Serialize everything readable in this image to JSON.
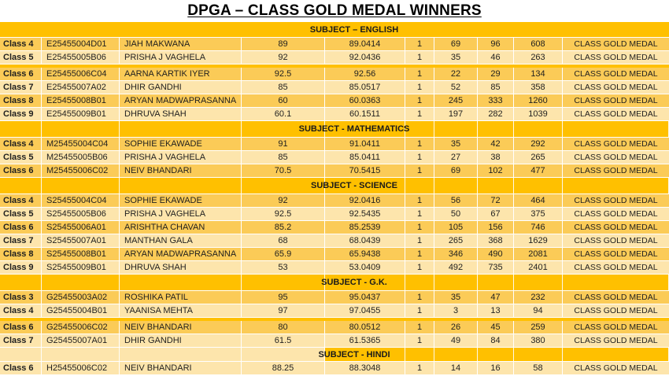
{
  "title": "DPGA – CLASS GOLD MEDAL WINNERS",
  "award_label": "CLASS GOLD MEDAL",
  "colors": {
    "accent_gold": "#FFC000",
    "band_medium": "#FBCB57",
    "band_light": "#FDE5AC",
    "grid_line": "#FFFFFF",
    "text": "#1F1F1F"
  },
  "sections": [
    {
      "subject": "SUBJECT – ENGLISH",
      "variant": "merged",
      "rows": [
        {
          "cls": "Class 4",
          "id": "E25455004D01",
          "name": "JIAH MAKWANA",
          "score": "89",
          "avg": "89.0414",
          "rank": "1",
          "s1": "69",
          "s2": "96",
          "s3": "608",
          "band": "m"
        },
        {
          "cls": "Class 5",
          "id": "E25455005B06",
          "name": "PRISHA J VAGHELA",
          "score": "92",
          "avg": "92.0436",
          "rank": "1",
          "s1": "35",
          "s2": "46",
          "s3": "263",
          "band": "l",
          "sep_after": true
        },
        {
          "cls": "Class 6",
          "id": "E25455006C04",
          "name": "AARNA KARTIK IYER",
          "score": "92.5",
          "avg": "92.56",
          "rank": "1",
          "s1": "22",
          "s2": "29",
          "s3": "134",
          "band": "m"
        },
        {
          "cls": "Class 7",
          "id": "E25455007A02",
          "name": "DHIR GANDHI",
          "score": "85",
          "avg": "85.0517",
          "rank": "1",
          "s1": "52",
          "s2": "85",
          "s3": "358",
          "band": "l"
        },
        {
          "cls": "Class 8",
          "id": "E25455008B01",
          "name": "ARYAN MADWAPRASANNA",
          "score": "60",
          "avg": "60.0363",
          "rank": "1",
          "s1": "245",
          "s2": "333",
          "s3": "1260",
          "band": "m"
        },
        {
          "cls": "Class 9",
          "id": "E25455009B01",
          "name": "DHRUVA SHAH",
          "score": "60.1",
          "avg": "60.1511",
          "rank": "1",
          "s1": "197",
          "s2": "282",
          "s3": "1039",
          "band": "l"
        }
      ]
    },
    {
      "subject": "SUBJECT - MATHEMATICS",
      "variant": "grid",
      "rows": [
        {
          "cls": "Class 4",
          "id": "M25455004C04",
          "name": "SOPHIE EKAWADE",
          "score": "91",
          "avg": "91.0411",
          "rank": "1",
          "s1": "35",
          "s2": "42",
          "s3": "292",
          "band": "m"
        },
        {
          "cls": "Class 5",
          "id": "M25455005B06",
          "name": "PRISHA J VAGHELA",
          "score": "85",
          "avg": "85.0411",
          "rank": "1",
          "s1": "27",
          "s2": "38",
          "s3": "265",
          "band": "l"
        },
        {
          "cls": "Class 6",
          "id": "M25455006C02",
          "name": "NEIV BHANDARI",
          "score": "70.5",
          "avg": "70.5415",
          "rank": "1",
          "s1": "69",
          "s2": "102",
          "s3": "477",
          "band": "m"
        }
      ]
    },
    {
      "subject": "SUBJECT - SCIENCE",
      "variant": "grid",
      "rows": [
        {
          "cls": "Class 4",
          "id": "S25455004C04",
          "name": "SOPHIE EKAWADE",
          "score": "92",
          "avg": "92.0416",
          "rank": "1",
          "s1": "56",
          "s2": "72",
          "s3": "464",
          "band": "m"
        },
        {
          "cls": "Class 5",
          "id": "S25455005B06",
          "name": "PRISHA J VAGHELA",
          "score": "92.5",
          "avg": "92.5435",
          "rank": "1",
          "s1": "50",
          "s2": "67",
          "s3": "375",
          "band": "l"
        },
        {
          "cls": "Class 6",
          "id": "S25455006A01",
          "name": "ARISHTHA CHAVAN",
          "score": "85.2",
          "avg": "85.2539",
          "rank": "1",
          "s1": "105",
          "s2": "156",
          "s3": "746",
          "band": "m"
        },
        {
          "cls": "Class 7",
          "id": "S25455007A01",
          "name": "MANTHAN GALA",
          "score": "68",
          "avg": "68.0439",
          "rank": "1",
          "s1": "265",
          "s2": "368",
          "s3": "1629",
          "band": "l"
        },
        {
          "cls": "Class 8",
          "id": "S25455008B01",
          "name": "ARYAN MADWAPRASANNA",
          "score": "65.9",
          "avg": "65.9438",
          "rank": "1",
          "s1": "346",
          "s2": "490",
          "s3": "2081",
          "band": "m"
        },
        {
          "cls": "Class 9",
          "id": "S25455009B01",
          "name": "DHRUVA SHAH",
          "score": "53",
          "avg": "53.0409",
          "rank": "1",
          "s1": "492",
          "s2": "735",
          "s3": "2401",
          "band": "l"
        }
      ]
    },
    {
      "subject": "SUBJECT - G.K.",
      "variant": "grid",
      "rows": [
        {
          "cls": "Class 3",
          "id": "G25455003A02",
          "name": "ROSHIKA PATIL",
          "score": "95",
          "avg": "95.0437",
          "rank": "1",
          "s1": "35",
          "s2": "47",
          "s3": "232",
          "band": "m"
        },
        {
          "cls": "Class 4",
          "id": "G25455004B01",
          "name": "YAANISA MEHTA",
          "score": "97",
          "avg": "97.0455",
          "rank": "1",
          "s1": "3",
          "s2": "13",
          "s3": "94",
          "band": "l",
          "sep_after": true
        },
        {
          "cls": "Class 6",
          "id": "G25455006C02",
          "name": "NEIV BHANDARI",
          "score": "80",
          "avg": "80.0512",
          "rank": "1",
          "s1": "26",
          "s2": "45",
          "s3": "259",
          "band": "m"
        },
        {
          "cls": "Class 7",
          "id": "G25455007A01",
          "name": "DHIR GANDHI",
          "score": "61.5",
          "avg": "61.5365",
          "rank": "1",
          "s1": "49",
          "s2": "84",
          "s3": "380",
          "band": "l"
        }
      ]
    },
    {
      "subject": "SUBJECT - HINDI",
      "variant": "grid-light",
      "rows": [
        {
          "cls": "Class 6",
          "id": "H25455006C02",
          "name": "NEIV BHANDARI",
          "score": "88.25",
          "avg": "88.3048",
          "rank": "1",
          "s1": "14",
          "s2": "16",
          "s3": "58",
          "band": "l"
        }
      ]
    }
  ]
}
